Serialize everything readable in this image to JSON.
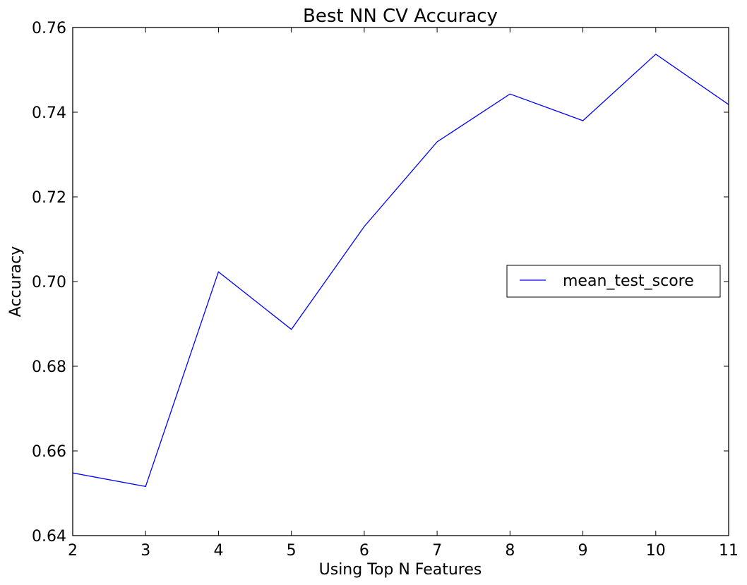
{
  "chart_data": {
    "type": "line",
    "title": "Best NN CV Accuracy",
    "xlabel": "Using Top N Features",
    "ylabel": "Accuracy",
    "xlim": [
      2,
      11
    ],
    "ylim": [
      0.64,
      0.76
    ],
    "xticks": [
      2,
      3,
      4,
      5,
      6,
      7,
      8,
      9,
      10,
      11
    ],
    "yticks": [
      0.64,
      0.66,
      0.68,
      0.7,
      0.72,
      0.74,
      0.76
    ],
    "ytick_labels": [
      "0.64",
      "0.66",
      "0.68",
      "0.70",
      "0.72",
      "0.74",
      "0.76"
    ],
    "legend_position": "center-right",
    "series": [
      {
        "name": "mean_test_score",
        "color": "#0000ff",
        "x": [
          2,
          3,
          4,
          5,
          6,
          7,
          8,
          9,
          10,
          11
        ],
        "y": [
          0.6548,
          0.6516,
          0.7023,
          0.6887,
          0.713,
          0.733,
          0.7443,
          0.738,
          0.7537,
          0.7418
        ]
      }
    ]
  }
}
